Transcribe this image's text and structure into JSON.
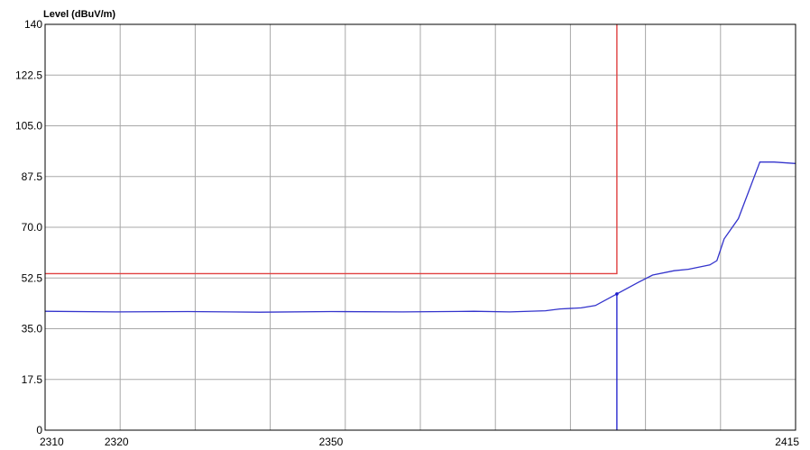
{
  "chart_data": {
    "type": "line",
    "ylabel": "Level (dBuV/m)",
    "xlim": [
      2310,
      2415
    ],
    "ylim": [
      0,
      140
    ],
    "xticks": [
      2310,
      2320,
      2350,
      2415
    ],
    "yticks": [
      "0",
      "17.5",
      "35.0",
      "52.5",
      "70.0",
      "87.5",
      "105.0",
      "122.5",
      "140"
    ],
    "grid": true,
    "series": [
      {
        "color": "#3333cc",
        "x": [
          2310,
          2320,
          2330,
          2340,
          2350,
          2360,
          2370,
          2375,
          2380,
          2382,
          2385,
          2387,
          2390,
          2393,
          2395,
          2398,
          2400,
          2402,
          2403,
          2404,
          2405,
          2407,
          2410,
          2412,
          2415
        ],
        "y": [
          41,
          40.8,
          40.9,
          40.7,
          40.9,
          40.8,
          41,
          40.8,
          41.2,
          41.8,
          42.2,
          43,
          47,
          51,
          53.5,
          55,
          55.5,
          56.5,
          57,
          58.5,
          66,
          73,
          92.5,
          92.5,
          92
        ]
      },
      {
        "color": "#e04040",
        "x": [
          2310,
          2390,
          2390
        ],
        "y": [
          54,
          54,
          140
        ]
      },
      {
        "color": "#1a1acc",
        "x": [
          2390,
          2390
        ],
        "y": [
          0,
          47
        ]
      }
    ]
  }
}
